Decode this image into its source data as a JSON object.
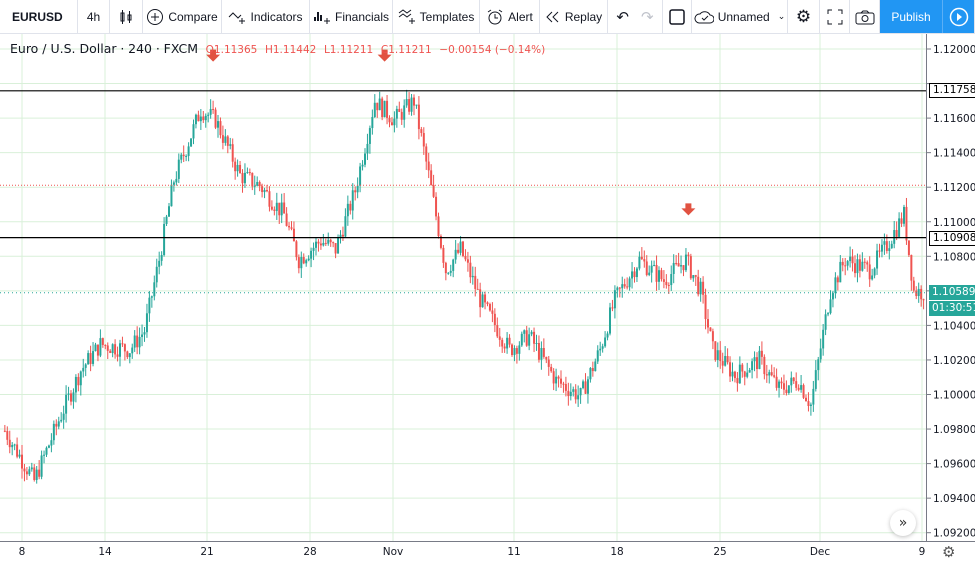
{
  "toolbar": {
    "symbol": "EURUSD",
    "interval": "4h",
    "compare": "Compare",
    "indicators": "Indicators",
    "financials": "Financials",
    "templates": "Templates",
    "alert": "Alert",
    "replay": "Replay",
    "layout_name": "Unnamed",
    "publish": "Publish"
  },
  "legend": {
    "title": "Euro / U.S. Dollar",
    "interval": "240",
    "exchange": "FXCM",
    "open": "O1.11365",
    "high": "H1.11442",
    "low": "L1.11211",
    "close": "C1.11211",
    "change": "−0.00154 (−0.14%)"
  },
  "colors": {
    "up": "#26a69a",
    "down": "#ef5350",
    "accent": "#2196f3",
    "grid": "#d9f0d9"
  },
  "chart_data": {
    "type": "candlestick",
    "y_ticks": [
      "1.12000",
      "1.11800",
      "1.11600",
      "1.11400",
      "1.11200",
      "1.11000",
      "1.10800",
      "1.10600",
      "1.10400",
      "1.10200",
      "1.10000",
      "1.09800",
      "1.09600",
      "1.09400",
      "1.09200"
    ],
    "ylim": [
      1.0918,
      1.1246
    ],
    "x_ticks": [
      "8",
      "14",
      "21",
      "28",
      "Nov",
      "11",
      "18",
      "25",
      "Dec",
      "9"
    ],
    "horizontal_lines": [
      {
        "price": 1.11758,
        "label": "1.11758",
        "color": "#000000"
      },
      {
        "price": 1.10908,
        "label": "1.10908",
        "color": "#000000"
      }
    ],
    "last_close_line": 1.11211,
    "current_price": {
      "label": "1.10589",
      "countdown": "01:30:51",
      "color": "#26a69a"
    },
    "markers": [
      {
        "type": "arrow-down",
        "date": "10-21 00",
        "price": 1.1195
      },
      {
        "type": "arrow-down",
        "date": "11-01 16",
        "price": 1.1195
      },
      {
        "type": "arrow-down",
        "date": "11-22 08",
        "price": 1.1106
      }
    ],
    "price_path": [
      [
        "10-06 20",
        1.0979
      ],
      [
        "10-08 20",
        1.095
      ],
      [
        "10-10 12",
        1.0985
      ],
      [
        "10-12 00",
        1.1014
      ],
      [
        "10-13 08",
        1.1029
      ],
      [
        "10-15 08",
        1.1026
      ],
      [
        "10-16 08",
        1.1037
      ],
      [
        "10-17 08",
        1.1078
      ],
      [
        "10-18 08",
        1.1124
      ],
      [
        "10-20 04",
        1.1165
      ],
      [
        "10-21 04",
        1.1159
      ],
      [
        "10-22 20",
        1.1127
      ],
      [
        "10-24 04",
        1.1121
      ],
      [
        "10-25 20",
        1.1104
      ],
      [
        "10-26 20",
        1.1078
      ],
      [
        "10-28 08",
        1.1089
      ],
      [
        "10-29 08",
        1.1084
      ],
      [
        "10-30 16",
        1.1118
      ],
      [
        "11-01 00",
        1.117
      ],
      [
        "11-02 08",
        1.1159
      ],
      [
        "11-03 16",
        1.117
      ],
      [
        "11-04 16",
        1.1127
      ],
      [
        "11-05 20",
        1.1072
      ],
      [
        "11-06 20",
        1.1084
      ],
      [
        "11-08 04",
        1.1055
      ],
      [
        "11-10 04",
        1.1026
      ],
      [
        "11-11 12",
        1.1034
      ],
      [
        "11-13 08",
        1.1008
      ],
      [
        "11-15 00",
        1.0999
      ],
      [
        "11-16 08",
        1.1026
      ],
      [
        "11-17 08",
        1.1055
      ],
      [
        "11-19 00",
        1.1078
      ],
      [
        "11-20 16",
        1.1066
      ],
      [
        "11-22 04",
        1.1078
      ],
      [
        "11-23 04",
        1.106
      ],
      [
        "11-24 00",
        1.1026
      ],
      [
        "11-25 12",
        1.1011
      ],
      [
        "11-27 04",
        1.102
      ],
      [
        "11-28 12",
        1.1003
      ],
      [
        "11-29 20",
        1.1008
      ],
      [
        "11-30 16",
        1.0994
      ],
      [
        "12-02 00",
        1.106
      ],
      [
        "12-03 00",
        1.1078
      ],
      [
        "12-04 16",
        1.1072
      ],
      [
        "12-05 16",
        1.1084
      ],
      [
        "12-07 00",
        1.1104
      ],
      [
        "12-07 16",
        1.106
      ],
      [
        "12-08 12",
        1.1059
      ]
    ]
  }
}
